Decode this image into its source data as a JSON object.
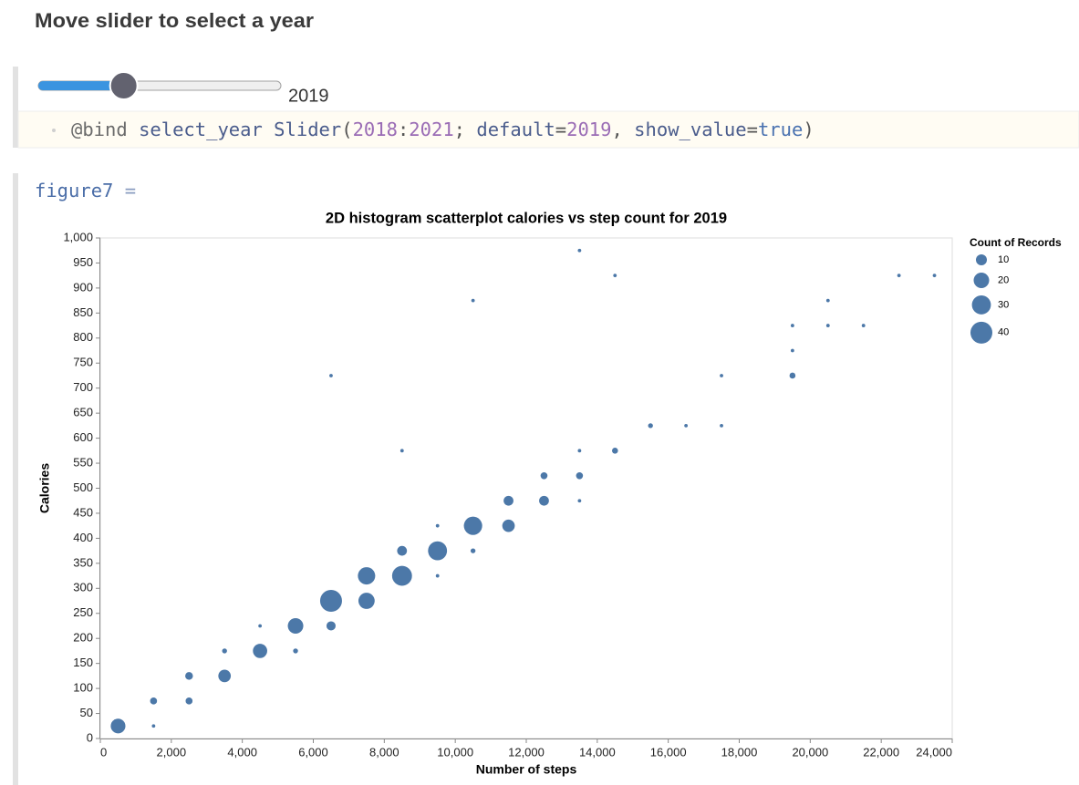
{
  "header": {
    "title": "Move slider to select a year"
  },
  "slider": {
    "min": 2018,
    "max": 2021,
    "value": 2019
  },
  "code": {
    "tokens": [
      {
        "text": "@bind ",
        "color": "#6b6b6b"
      },
      {
        "text": "select_year ",
        "color": "#4a5c8c"
      },
      {
        "text": "Slider",
        "color": "#4a5c8c"
      },
      {
        "text": "(",
        "color": "#555555"
      },
      {
        "text": "2018",
        "color": "#9a6cb5"
      },
      {
        "text": ":",
        "color": "#555555"
      },
      {
        "text": "2021",
        "color": "#9a6cb5"
      },
      {
        "text": "; ",
        "color": "#555555"
      },
      {
        "text": "default",
        "color": "#4a5c8c"
      },
      {
        "text": "=",
        "color": "#555555"
      },
      {
        "text": "2019",
        "color": "#9a6cb5"
      },
      {
        "text": ", ",
        "color": "#555555"
      },
      {
        "text": "show_value",
        "color": "#4a5c8c"
      },
      {
        "text": "=",
        "color": "#555555"
      },
      {
        "text": "true",
        "color": "#4a72b0"
      },
      {
        "text": ")",
        "color": "#555555"
      }
    ]
  },
  "cell": {
    "tokens": [
      {
        "text": "figure7 ",
        "color": "#4b6ea8"
      },
      {
        "text": "=",
        "color": "#8a9cc0"
      }
    ]
  },
  "chart_data": {
    "type": "scatter",
    "title": "2D histogram scatterplot calories vs step count for 2019",
    "x_label": "Number of steps",
    "y_label": "Calories",
    "x": [
      500,
      1500,
      1500,
      2500,
      2500,
      3500,
      3500,
      4500,
      4500,
      5500,
      5500,
      6500,
      6500,
      6500,
      7500,
      7500,
      8500,
      8500,
      8500,
      9500,
      9500,
      9500,
      10500,
      10500,
      10500,
      11500,
      11500,
      12500,
      12500,
      13500,
      13500,
      13500,
      13500,
      14500,
      14500,
      15500,
      16500,
      17500,
      17500,
      19500,
      19500,
      19500,
      20500,
      20500,
      21500,
      22500,
      23500
    ],
    "values": [
      25,
      25,
      75,
      75,
      125,
      175,
      125,
      225,
      175,
      175,
      225,
      725,
      225,
      275,
      325,
      275,
      575,
      375,
      325,
      425,
      375,
      325,
      875,
      425,
      375,
      475,
      425,
      525,
      475,
      975,
      575,
      525,
      475,
      925,
      575,
      625,
      625,
      725,
      625,
      825,
      775,
      725,
      875,
      825,
      825,
      925,
      925
    ],
    "sizes": [
      18,
      1,
      4,
      4,
      5,
      2,
      13,
      1,
      17,
      2,
      20,
      1,
      7,
      40,
      25,
      22,
      1,
      8,
      33,
      1,
      30,
      1,
      1,
      28,
      2,
      8,
      13,
      4,
      8,
      1,
      1,
      4,
      1,
      1,
      3,
      2,
      1,
      1,
      1,
      1,
      1,
      3,
      1,
      1,
      1,
      1,
      1
    ],
    "color": "#4c78a8",
    "xlim": [
      0,
      24000
    ],
    "xticks": [
      0,
      {
        "value": 2000,
        "label": "2,000"
      },
      {
        "value": 4000,
        "label": "4,000"
      },
      {
        "value": 6000,
        "label": "6,000"
      },
      {
        "value": 8000,
        "label": "8,000"
      },
      {
        "value": 10000,
        "label": "10,000"
      },
      {
        "value": 12000,
        "label": "12,000"
      },
      {
        "value": 14000,
        "label": "14,000"
      },
      {
        "value": 16000,
        "label": "16,000"
      },
      {
        "value": 18000,
        "label": "18,000"
      },
      {
        "value": 20000,
        "label": "20,000"
      },
      {
        "value": 22000,
        "label": "22,000"
      },
      {
        "value": 24000,
        "label": "24,000"
      }
    ],
    "ylim": [
      0,
      1000
    ],
    "yticks": [
      0,
      50,
      100,
      150,
      200,
      250,
      300,
      350,
      400,
      450,
      500,
      550,
      600,
      650,
      700,
      750,
      800,
      850,
      900,
      950,
      {
        "value": 1000,
        "label": "1,000"
      }
    ],
    "grid": false,
    "size_legend": {
      "title": "Count of Records",
      "values": [
        10,
        20,
        30,
        40
      ]
    }
  }
}
